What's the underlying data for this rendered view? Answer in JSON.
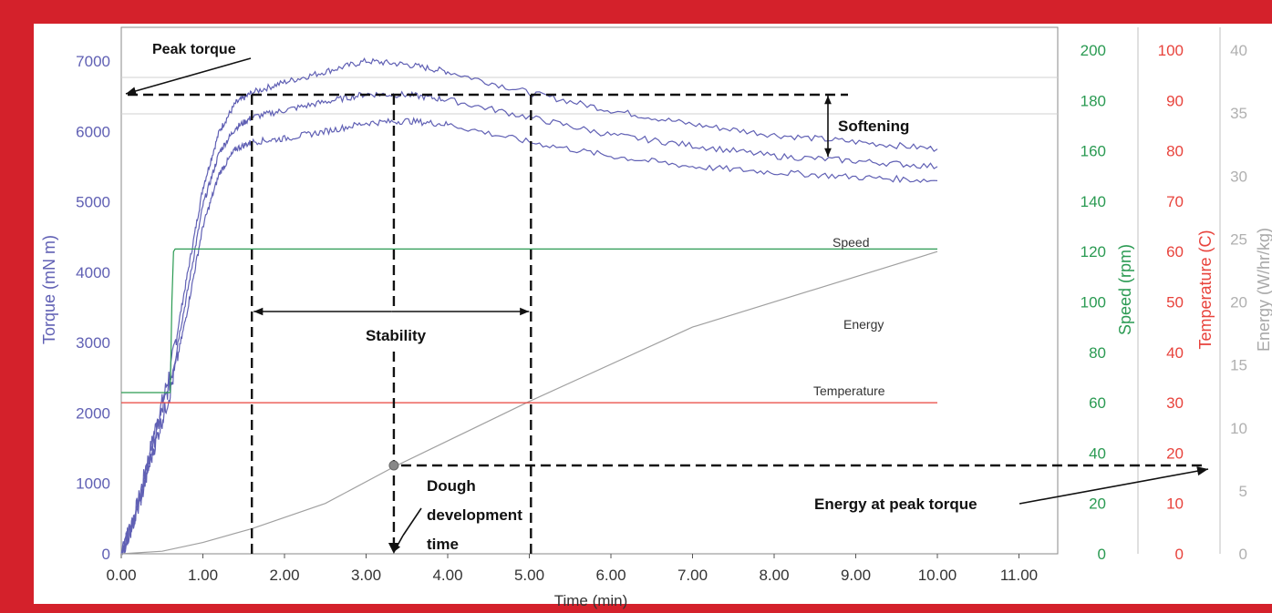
{
  "colors": {
    "frame": "#d4212b",
    "torque": "#6060b4",
    "speed": "#2a9a52",
    "temperature": "#e8433c",
    "energy": "#a0a0a0",
    "annotation": "#111111"
  },
  "chart_data": {
    "type": "line",
    "title": "",
    "xlabel": "Time (min)",
    "xlim": [
      0,
      11
    ],
    "x_ticks": [
      "0.00",
      "1.00",
      "2.00",
      "3.00",
      "4.00",
      "5.00",
      "6.00",
      "7.00",
      "8.00",
      "9.00",
      "10.00",
      "11.00"
    ],
    "axes": {
      "torque": {
        "label": "Torque (mN m)",
        "range": [
          0,
          7000
        ],
        "ticks": [
          "0",
          "1000",
          "2000",
          "3000",
          "4000",
          "5000",
          "6000",
          "7000"
        ]
      },
      "speed": {
        "label": "Speed (rpm)",
        "range": [
          0,
          200
        ],
        "ticks": [
          "0",
          "20",
          "40",
          "60",
          "80",
          "100",
          "120",
          "140",
          "160",
          "180",
          "200"
        ]
      },
      "temperature": {
        "label": "Temperature (C)",
        "range": [
          0,
          100
        ],
        "ticks": [
          "0",
          "10",
          "20",
          "30",
          "40",
          "50",
          "60",
          "70",
          "80",
          "90",
          "100"
        ]
      },
      "energy": {
        "label": "Energy (W/hr/kg)",
        "range": [
          0,
          40
        ],
        "ticks": [
          "0",
          "5",
          "10",
          "15",
          "20",
          "25",
          "30",
          "35",
          "40"
        ]
      }
    },
    "series": [
      {
        "name": "",
        "axis": "torque",
        "x": [
          0,
          0.2,
          0.4,
          0.6,
          0.8,
          1.0,
          1.2,
          1.4,
          1.6,
          2.0,
          2.5,
          3.0,
          3.5,
          4.0,
          5.0,
          6.0,
          7.0,
          8.0,
          9.0,
          10.0
        ],
        "y": [
          0,
          700,
          1700,
          2600,
          3900,
          5200,
          6000,
          6400,
          6550,
          6700,
          6850,
          7000,
          6950,
          6850,
          6550,
          6300,
          6100,
          5950,
          5850,
          5750
        ]
      },
      {
        "name": "",
        "axis": "torque",
        "x": [
          0,
          0.2,
          0.4,
          0.6,
          0.8,
          1.0,
          1.2,
          1.4,
          1.6,
          2.0,
          2.5,
          3.0,
          3.5,
          4.0,
          5.0,
          6.0,
          7.0,
          8.0,
          9.0,
          10.0
        ],
        "y": [
          0,
          650,
          1600,
          2450,
          3650,
          4950,
          5700,
          6050,
          6200,
          6300,
          6420,
          6530,
          6520,
          6450,
          6200,
          5950,
          5800,
          5650,
          5580,
          5500
        ]
      },
      {
        "name": "",
        "axis": "torque",
        "x": [
          0,
          0.2,
          0.4,
          0.6,
          0.8,
          1.0,
          1.2,
          1.4,
          1.6,
          2.0,
          2.5,
          3.0,
          3.5,
          4.0,
          5.0,
          6.0,
          7.0,
          8.0,
          9.0,
          10.0
        ],
        "y": [
          0,
          600,
          1500,
          2300,
          3400,
          4650,
          5400,
          5750,
          5850,
          5900,
          6000,
          6120,
          6150,
          6100,
          5850,
          5650,
          5500,
          5420,
          5350,
          5300
        ]
      },
      {
        "name": "Speed",
        "axis": "speed",
        "x": [
          0,
          0.6,
          0.62,
          0.64,
          0.66,
          10.0
        ],
        "y": [
          64,
          64,
          100,
          120,
          121,
          121
        ]
      },
      {
        "name": "Energy",
        "axis": "energy",
        "x": [
          0,
          0.5,
          1.0,
          1.6,
          2.5,
          3.34,
          5.0,
          7.0,
          10.0
        ],
        "y": [
          0,
          0.2,
          0.9,
          2.0,
          4.0,
          6.9,
          12.1,
          18.0,
          24.0
        ]
      },
      {
        "name": "Temperature",
        "axis": "temperature",
        "x": [
          0,
          10.0
        ],
        "y": [
          30,
          30
        ]
      }
    ],
    "annotations": {
      "peak_torque": "Peak torque",
      "softening": "Softening",
      "stability": "Stability",
      "ddt_line1": "Dough",
      "ddt_line2": "development",
      "ddt_line3": "time",
      "energy_peak": "Energy at peak torque",
      "peak_torque_value": 6530,
      "ddt_time": 3.34,
      "stability_start": 1.6,
      "stability_end": 5.02
    },
    "grid": false
  }
}
